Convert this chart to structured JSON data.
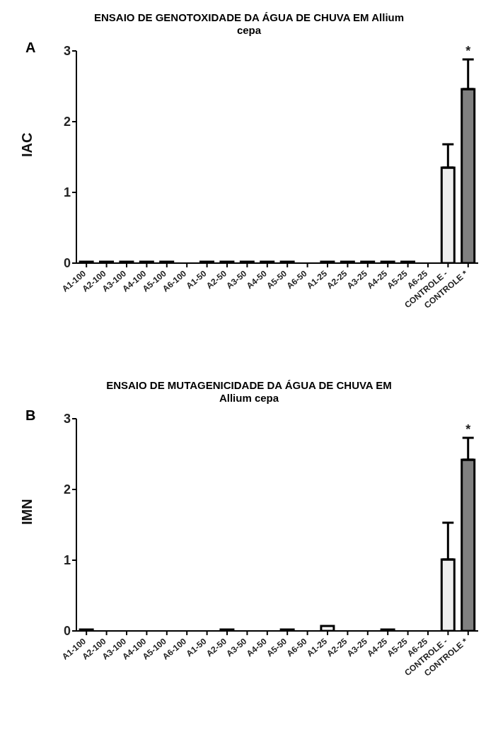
{
  "chart_data": [
    {
      "type": "bar",
      "title": "ENSAIO DE GENOTOXIDADE DA ÁGUA DE CHUVA EM Allium cepa",
      "ylabel": "IAC",
      "annotations": [
        "A",
        "*"
      ],
      "categories": [
        "A1-100",
        "A2-100",
        "A3-100",
        "A4-100",
        "A5-100",
        "A6-100",
        "A1-50",
        "A2-50",
        "A3-50",
        "A4-50",
        "A5-50",
        "A6-50",
        "A1-25",
        "A2-25",
        "A3-25",
        "A4-25",
        "A5-25",
        "A6-25",
        "CONTROLE -",
        "CONTROLE *"
      ],
      "values": [
        0.02,
        0.02,
        0.02,
        0.02,
        0.02,
        0,
        0.02,
        0.02,
        0.02,
        0.02,
        0.02,
        0,
        0.02,
        0.02,
        0.02,
        0.02,
        0.02,
        0,
        1.35,
        2.46
      ],
      "errors": [
        null,
        null,
        null,
        null,
        null,
        null,
        null,
        null,
        null,
        null,
        null,
        null,
        null,
        null,
        null,
        null,
        null,
        null,
        0.33,
        0.42
      ],
      "colors": [
        "#000000",
        "#000000",
        "#000000",
        "#000000",
        "#000000",
        "#000000",
        "#000000",
        "#000000",
        "#000000",
        "#000000",
        "#000000",
        "#000000",
        "#000000",
        "#000000",
        "#000000",
        "#000000",
        "#000000",
        "#000000",
        "#eeeeee",
        "#808080"
      ],
      "ylim": [
        0,
        3
      ],
      "yticks": [
        0,
        1,
        2,
        3
      ]
    },
    {
      "type": "bar",
      "title": "ENSAIO DE MUTAGENICIDADE DA ÁGUA DE CHUVA EM Allium cepa",
      "ylabel": "IMN",
      "annotations": [
        "B",
        "*"
      ],
      "categories": [
        "A1-100",
        "A2-100",
        "A3-100",
        "A4-100",
        "A5-100",
        "A6-100",
        "A1-50",
        "A2-50",
        "A3-50",
        "A4-50",
        "A5-50",
        "A6-50",
        "A1-25",
        "A2-25",
        "A3-25",
        "A4-25",
        "A5-25",
        "A6-25",
        "CONTROLE -",
        "CONTROLE *"
      ],
      "values": [
        0.02,
        0,
        0,
        0,
        0,
        0,
        0,
        0.02,
        0,
        0,
        0.02,
        0,
        0.07,
        0,
        0,
        0.02,
        0,
        0,
        1.01,
        2.42
      ],
      "errors": [
        null,
        null,
        null,
        null,
        null,
        null,
        null,
        null,
        null,
        null,
        null,
        null,
        null,
        null,
        null,
        null,
        null,
        null,
        0.52,
        0.31
      ],
      "colors": [
        "#000000",
        "#000000",
        "#000000",
        "#000000",
        "#000000",
        "#000000",
        "#000000",
        "#000000",
        "#000000",
        "#000000",
        "#000000",
        "#000000",
        "#ffffff",
        "#000000",
        "#000000",
        "#000000",
        "#000000",
        "#000000",
        "#eeeeee",
        "#808080"
      ],
      "ylim": [
        0,
        3
      ],
      "yticks": [
        0,
        1,
        2,
        3
      ]
    }
  ]
}
